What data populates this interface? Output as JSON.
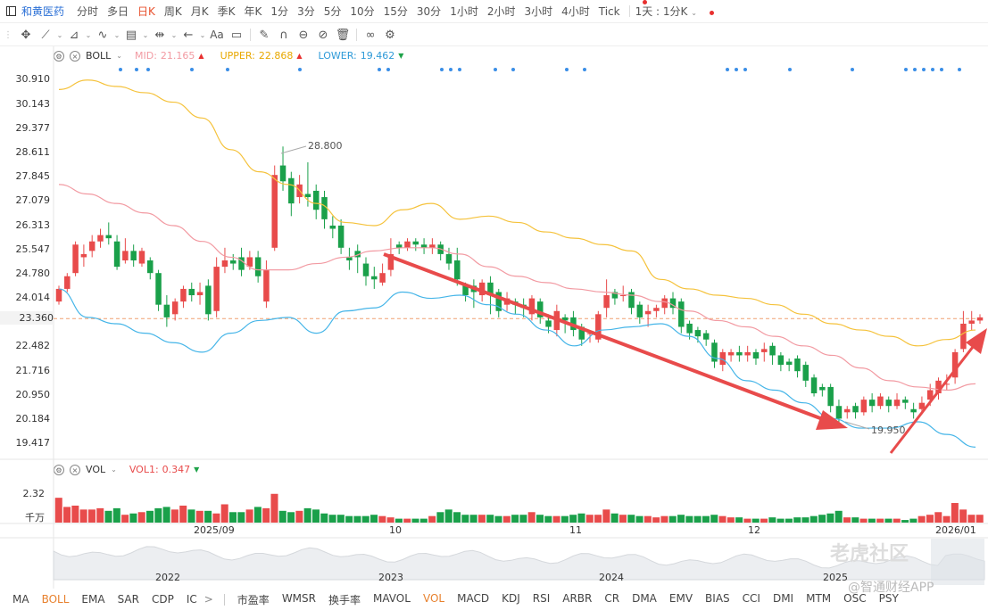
{
  "topbar": {
    "stock_name": "和黄医药",
    "periods": [
      "分时",
      "多日",
      "日K",
      "周K",
      "月K",
      "季K",
      "年K",
      "1分",
      "3分",
      "5分",
      "10分",
      "15分",
      "30分",
      "1小时",
      "2小时",
      "3小时",
      "4小时",
      "Tick"
    ],
    "active_period": "日K",
    "custom_period": "1天 : 1分K"
  },
  "boll": {
    "name": "BOLL",
    "mid_label": "MID:",
    "mid_value": "21.165",
    "upper_label": "UPPER:",
    "upper_value": "22.868",
    "lower_label": "LOWER:",
    "lower_value": "19.462",
    "colors": {
      "mid": "#f29aa2",
      "upper": "#f5c23b",
      "lower": "#45b5e8"
    }
  },
  "vol": {
    "name": "VOL",
    "vol1_label": "VOL1:",
    "vol1_value": "0.347",
    "y_top": "2.32",
    "y_unit": "千万"
  },
  "price_axis": [
    "30.910",
    "30.143",
    "29.377",
    "28.611",
    "27.845",
    "27.079",
    "26.313",
    "25.547",
    "24.780",
    "24.014",
    "22.482",
    "21.716",
    "20.950",
    "20.184",
    "19.417"
  ],
  "current_price": "23.360",
  "annotations": {
    "high": "28.800",
    "low": "19.950"
  },
  "x_labels": [
    "2025/09",
    "10",
    "11",
    "12",
    "2026/01"
  ],
  "navigator_labels": [
    "2022",
    "2023",
    "2024",
    "2025"
  ],
  "bottom_indicators_main": [
    "MA",
    "BOLL",
    "EMA",
    "SAR",
    "CDP",
    "IC"
  ],
  "bottom_indicators_sub": [
    "市盈率",
    "WMSR",
    "换手率",
    "MAVOL",
    "VOL",
    "MACD",
    "KDJ",
    "RSI",
    "ARBR",
    "CR",
    "DMA",
    "EMV",
    "BIAS",
    "CCI",
    "DMI",
    "MTM",
    "OSC",
    "PSY"
  ],
  "active_main": "BOLL",
  "active_sub": "VOL",
  "watermark": {
    "line1": "老虎社区",
    "line2": "@智通财经APP"
  },
  "chart_data": {
    "type": "candlestick",
    "y_range": [
      19.0,
      31.4
    ],
    "candles": [
      [
        23.9,
        24.3,
        23.8,
        24.4
      ],
      [
        24.3,
        24.7,
        24.2,
        24.8
      ],
      [
        24.8,
        25.7,
        24.7,
        25.8
      ],
      [
        25.3,
        25.4,
        25.0,
        25.7
      ],
      [
        25.5,
        25.8,
        25.3,
        26.0
      ],
      [
        25.8,
        26.0,
        25.6,
        26.2
      ],
      [
        26.0,
        25.9,
        25.7,
        26.4
      ],
      [
        25.8,
        25.0,
        24.9,
        26.0
      ],
      [
        25.2,
        25.5,
        25.1,
        25.9
      ],
      [
        25.5,
        25.2,
        25.0,
        25.7
      ],
      [
        25.1,
        25.5,
        25.0,
        25.6
      ],
      [
        25.2,
        24.8,
        24.6,
        25.3
      ],
      [
        24.8,
        23.8,
        23.6,
        24.9
      ],
      [
        23.8,
        23.4,
        23.1,
        24.1
      ],
      [
        23.5,
        23.9,
        23.3,
        24.0
      ],
      [
        23.9,
        24.3,
        23.7,
        24.4
      ],
      [
        24.3,
        24.1,
        23.9,
        24.5
      ],
      [
        24.1,
        24.2,
        23.8,
        24.5
      ],
      [
        24.4,
        23.5,
        23.3,
        24.6
      ],
      [
        23.6,
        25.0,
        23.4,
        25.3
      ],
      [
        25.0,
        25.2,
        24.8,
        25.6
      ],
      [
        25.2,
        25.1,
        24.9,
        25.4
      ],
      [
        25.3,
        24.9,
        24.7,
        25.6
      ],
      [
        25.0,
        25.3,
        24.9,
        25.5
      ],
      [
        25.3,
        24.7,
        24.5,
        25.5
      ],
      [
        23.9,
        24.9,
        23.7,
        25.2
      ],
      [
        25.6,
        27.9,
        25.5,
        28.2
      ],
      [
        28.2,
        27.7,
        27.4,
        28.8
      ],
      [
        27.8,
        27.0,
        26.6,
        28.0
      ],
      [
        27.2,
        27.6,
        27.0,
        27.9
      ],
      [
        27.3,
        27.2,
        26.9,
        28.3
      ],
      [
        27.4,
        26.8,
        26.5,
        27.6
      ],
      [
        27.2,
        26.5,
        26.2,
        27.4
      ],
      [
        26.3,
        26.2,
        25.9,
        26.6
      ],
      [
        26.3,
        25.6,
        25.4,
        26.5
      ],
      [
        25.3,
        25.2,
        24.9,
        25.6
      ],
      [
        25.5,
        25.3,
        24.8,
        25.7
      ],
      [
        25.1,
        24.7,
        24.4,
        25.3
      ],
      [
        24.7,
        24.6,
        24.3,
        25.0
      ],
      [
        24.5,
        24.8,
        24.4,
        25.1
      ],
      [
        24.9,
        25.4,
        24.7,
        25.9
      ],
      [
        25.7,
        25.6,
        25.4,
        25.8
      ],
      [
        25.6,
        25.8,
        25.5,
        25.9
      ],
      [
        25.8,
        25.7,
        25.5,
        25.9
      ],
      [
        25.7,
        25.6,
        25.4,
        25.9
      ],
      [
        25.6,
        25.7,
        25.4,
        25.9
      ],
      [
        25.7,
        25.4,
        25.2,
        25.8
      ],
      [
        25.4,
        25.1,
        24.9,
        25.6
      ],
      [
        25.2,
        24.6,
        24.4,
        25.6
      ],
      [
        24.4,
        24.1,
        23.9,
        24.5
      ],
      [
        24.4,
        24.2,
        23.7,
        24.6
      ],
      [
        24.1,
        24.5,
        23.9,
        24.6
      ],
      [
        24.5,
        24.1,
        23.5,
        24.7
      ],
      [
        24.2,
        23.6,
        23.4,
        24.3
      ],
      [
        23.8,
        24.0,
        23.6,
        24.2
      ],
      [
        23.9,
        23.8,
        23.5,
        24.0
      ],
      [
        23.8,
        23.7,
        23.4,
        24.0
      ],
      [
        23.5,
        24.0,
        23.3,
        24.1
      ],
      [
        23.9,
        23.4,
        23.2,
        24.0
      ],
      [
        23.3,
        23.1,
        22.9,
        23.5
      ],
      [
        23.0,
        23.6,
        22.8,
        23.8
      ],
      [
        23.4,
        23.3,
        22.9,
        23.5
      ],
      [
        23.4,
        23.0,
        22.8,
        23.6
      ],
      [
        23.1,
        22.7,
        22.5,
        23.2
      ],
      [
        22.9,
        22.9,
        22.6,
        23.0
      ],
      [
        22.7,
        23.5,
        22.6,
        23.6
      ],
      [
        23.7,
        24.1,
        23.4,
        24.6
      ],
      [
        24.2,
        24.0,
        23.8,
        24.3
      ],
      [
        24.1,
        24.1,
        23.9,
        24.4
      ],
      [
        24.2,
        23.7,
        23.5,
        24.3
      ],
      [
        23.8,
        23.4,
        23.2,
        23.9
      ],
      [
        23.5,
        23.6,
        23.1,
        23.8
      ],
      [
        23.6,
        23.7,
        23.4,
        23.8
      ],
      [
        23.7,
        24.0,
        23.5,
        24.1
      ],
      [
        24.0,
        23.7,
        23.5,
        24.2
      ],
      [
        23.9,
        23.1,
        22.9,
        24.0
      ],
      [
        23.2,
        22.9,
        22.7,
        23.3
      ],
      [
        23.0,
        22.8,
        22.6,
        23.1
      ],
      [
        22.9,
        22.7,
        22.5,
        23.0
      ],
      [
        22.6,
        22.0,
        21.8,
        22.7
      ],
      [
        21.9,
        22.3,
        21.7,
        22.4
      ],
      [
        22.2,
        22.3,
        22.0,
        22.4
      ],
      [
        22.3,
        22.2,
        22.0,
        22.5
      ],
      [
        22.2,
        22.3,
        22.0,
        22.5
      ],
      [
        22.3,
        22.1,
        21.9,
        22.4
      ],
      [
        22.3,
        22.4,
        22.0,
        22.6
      ],
      [
        22.5,
        22.2,
        21.9,
        22.6
      ],
      [
        22.2,
        21.9,
        21.7,
        22.3
      ],
      [
        22.0,
        21.9,
        21.7,
        22.1
      ],
      [
        22.1,
        21.7,
        21.5,
        22.2
      ],
      [
        21.9,
        21.4,
        21.2,
        22.0
      ],
      [
        21.5,
        21.0,
        20.9,
        21.6
      ],
      [
        21.2,
        21.1,
        20.9,
        21.3
      ],
      [
        21.2,
        20.6,
        20.4,
        21.3
      ],
      [
        20.6,
        20.2,
        19.95,
        20.8
      ],
      [
        20.4,
        20.5,
        20.2,
        20.6
      ],
      [
        20.6,
        20.4,
        20.2,
        20.7
      ],
      [
        20.4,
        20.8,
        20.3,
        20.9
      ],
      [
        20.8,
        20.6,
        20.4,
        21.0
      ],
      [
        20.6,
        20.9,
        20.5,
        21.0
      ],
      [
        20.8,
        20.6,
        20.4,
        20.9
      ],
      [
        20.6,
        20.8,
        20.5,
        21.0
      ],
      [
        20.8,
        20.7,
        20.5,
        20.9
      ],
      [
        20.5,
        20.4,
        20.2,
        20.7
      ],
      [
        20.5,
        20.7,
        20.4,
        20.9
      ],
      [
        20.8,
        21.1,
        20.6,
        21.3
      ],
      [
        21.0,
        21.4,
        20.8,
        21.5
      ],
      [
        21.3,
        21.3,
        21.1,
        21.6
      ],
      [
        21.5,
        22.3,
        21.3,
        22.4
      ],
      [
        22.4,
        23.2,
        22.3,
        23.6
      ],
      [
        23.2,
        23.3,
        23.0,
        23.6
      ],
      [
        23.3,
        23.4,
        23.2,
        23.5
      ]
    ],
    "boll_upper": [
      30.6,
      30.9,
      30.7,
      30.5,
      30.2,
      29.7,
      28.7,
      28.0,
      27.6,
      27.0,
      26.4,
      26.3,
      26.8,
      27.0,
      26.5,
      26.6,
      26.4,
      26.1,
      25.9,
      25.7,
      25.5,
      24.6,
      24.3,
      24.1,
      24.0,
      23.8,
      23.5,
      23.2,
      23.0,
      22.8,
      22.5,
      22.7,
      23.0
    ],
    "boll_mid": [
      27.6,
      27.3,
      27.0,
      26.7,
      26.3,
      25.8,
      25.3,
      24.9,
      24.9,
      25.1,
      25.3,
      25.5,
      25.6,
      25.6,
      25.4,
      25.0,
      24.7,
      24.5,
      24.3,
      24.2,
      24.1,
      23.9,
      23.6,
      23.3,
      23.1,
      22.8,
      22.5,
      22.2,
      21.8,
      21.4,
      21.2,
      21.1,
      21.3
    ],
    "boll_lower": [
      24.3,
      23.4,
      23.2,
      22.9,
      22.6,
      22.3,
      22.9,
      23.3,
      23.4,
      22.9,
      23.6,
      23.7,
      24.2,
      24.0,
      24.1,
      23.8,
      23.5,
      23.0,
      22.5,
      23.0,
      23.1,
      23.2,
      22.8,
      22.1,
      21.4,
      21.1,
      20.7,
      20.2,
      19.9,
      19.9,
      20.1,
      19.7,
      19.3
    ],
    "volume_max": 2.32,
    "volume": [
      1.9,
      1.2,
      1.3,
      1.0,
      1.0,
      1.1,
      0.9,
      1.1,
      0.6,
      0.7,
      0.8,
      0.9,
      1.1,
      1.2,
      1.0,
      1.3,
      1.0,
      0.9,
      0.9,
      0.7,
      1.4,
      0.8,
      0.8,
      1.0,
      1.2,
      1.1,
      2.2,
      0.9,
      0.8,
      0.9,
      1.1,
      1.0,
      0.7,
      0.6,
      0.6,
      0.5,
      0.5,
      0.5,
      0.6,
      0.5,
      0.4,
      0.3,
      0.3,
      0.3,
      0.3,
      0.5,
      0.8,
      1.0,
      0.8,
      0.6,
      0.6,
      0.6,
      0.6,
      0.5,
      0.5,
      0.6,
      0.6,
      0.8,
      0.6,
      0.5,
      0.5,
      0.5,
      0.6,
      0.7,
      0.6,
      0.6,
      1.0,
      0.7,
      0.6,
      0.6,
      0.5,
      0.5,
      0.4,
      0.5,
      0.5,
      0.6,
      0.5,
      0.5,
      0.5,
      0.6,
      0.5,
      0.4,
      0.4,
      0.3,
      0.3,
      0.3,
      0.4,
      0.3,
      0.3,
      0.4,
      0.4,
      0.5,
      0.6,
      0.7,
      0.9,
      0.4,
      0.4,
      0.3,
      0.3,
      0.3,
      0.3,
      0.3,
      0.2,
      0.3,
      0.5,
      0.6,
      0.8,
      0.5,
      1.5,
      1.0,
      0.6,
      0.6
    ]
  }
}
